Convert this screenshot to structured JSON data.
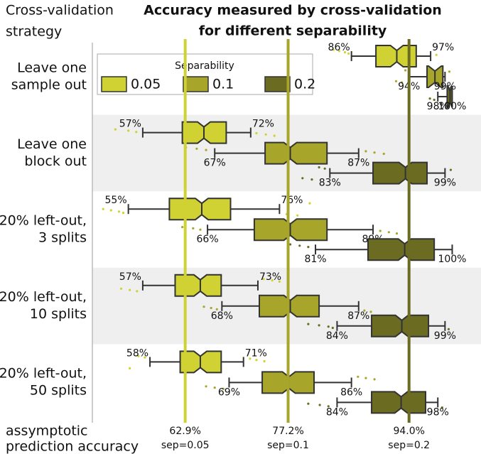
{
  "chart_data": {
    "type": "box",
    "title": [
      "Accuracy measured by cross-validation",
      "for different separability"
    ],
    "category_axis_title": [
      "Cross-validation",
      "strategy"
    ],
    "categories": [
      [
        "Leave one",
        "sample out"
      ],
      [
        "Leave one",
        "block out"
      ],
      [
        "20% left-out,",
        "3 splits"
      ],
      [
        "20% left-out,",
        "10 splits"
      ],
      [
        "20% left-out,",
        "50 splits"
      ]
    ],
    "xlim": [
      50,
      104
    ],
    "alternate_shading": true,
    "legend": {
      "title": "Separability",
      "position": "upper left"
    },
    "asymptote_title": [
      "assymptotic",
      "prediction accuracy"
    ],
    "series": [
      {
        "name": "0.05",
        "color": "#cfd232",
        "low": [
          86,
          57,
          55,
          57,
          58
        ],
        "q1": [
          89.4,
          62.5,
          60.7,
          61.5,
          62.2
        ],
        "median": [
          92.3,
          65.5,
          65.2,
          65.0,
          65.0
        ],
        "q3": [
          95.0,
          68.6,
          69.2,
          67.9,
          67.9
        ],
        "high": [
          97,
          72,
          76,
          73,
          71
        ],
        "low_labels": [
          "86%",
          "57%",
          "55%",
          "57%",
          "58%"
        ],
        "high_labels": [
          "97%",
          "72%",
          "76%",
          "73%",
          "71%"
        ],
        "outliers": [
          [
            83.5,
            84.3,
            85.1,
            85.6,
            97.8
          ],
          [
            53.2,
            55.0,
            56.1,
            72.8,
            74.1,
            75.3
          ],
          [
            51.5,
            52.6,
            53.7,
            54.3,
            77.0,
            78.5,
            80.2
          ],
          [
            54.0,
            55.2,
            56.2,
            73.8,
            75.0,
            76.0
          ],
          [
            55.2,
            56.4,
            57.3,
            71.9,
            72.8,
            73.9
          ]
        ],
        "asymptote": 62.9,
        "asymptote_label": "62.9%",
        "asymptote_note": "sep=0.05"
      },
      {
        "name": "0.1",
        "color": "#a8a62a",
        "low": [
          94,
          67,
          66,
          68,
          69
        ],
        "q1": [
          96.5,
          74.0,
          72.5,
          73.2,
          73.6
        ],
        "median": [
          97.6,
          77.5,
          77.5,
          77.5,
          77.3
        ],
        "q3": [
          98.7,
          82.6,
          82.6,
          81.5,
          80.8
        ],
        "high": [
          99,
          87,
          89,
          87,
          86
        ],
        "low_labels": [
          "94%",
          "67%",
          "66%",
          "68%",
          "69%"
        ],
        "high_labels": [
          "99%",
          "87%",
          "89%",
          "87%",
          "86%"
        ],
        "outliers": [
          [
            92.2,
            93.0,
            93.5,
            99.6
          ],
          [
            63.0,
            64.5,
            65.8,
            88.0,
            89.2,
            90.5
          ],
          [
            62.5,
            64.0,
            65.0,
            90.0,
            91.2,
            92.3
          ],
          [
            65.5,
            66.5,
            67.3,
            87.8,
            88.7
          ],
          [
            65.8,
            67.0,
            68.2,
            86.9,
            88.0,
            89.2
          ]
        ],
        "asymptote": 77.2,
        "asymptote_label": "77.2%",
        "asymptote_note": "sep=0.1"
      },
      {
        "name": "0.2",
        "color": "#6b6b22",
        "low": [
          98,
          83,
          81,
          84,
          84
        ],
        "q1": [
          99.3,
          89.0,
          88.3,
          88.8,
          88.8
        ],
        "median": [
          99.7,
          93.5,
          93.4,
          93.0,
          92.9
        ],
        "q3": [
          100,
          96.5,
          97.5,
          96.7,
          96.3
        ],
        "high": [
          100,
          99,
          100,
          99,
          98
        ],
        "low_labels": [
          "98%",
          "83%",
          "81%",
          "84%",
          "84%"
        ],
        "high_labels": [
          "100%",
          "99%",
          "100%",
          "99%",
          "98%"
        ],
        "outliers": [
          [
            96.9,
            97.5
          ],
          [
            79.2,
            80.5,
            81.5,
            82.3,
            99.8
          ],
          [
            77.5,
            78.8,
            80.0
          ],
          [
            80.0,
            81.5,
            82.8,
            83.4,
            99.5
          ],
          [
            80.0,
            81.6,
            82.8,
            98.6
          ]
        ],
        "asymptote": 94.0,
        "asymptote_label": "94.0%",
        "asymptote_note": "sep=0.2"
      }
    ]
  }
}
